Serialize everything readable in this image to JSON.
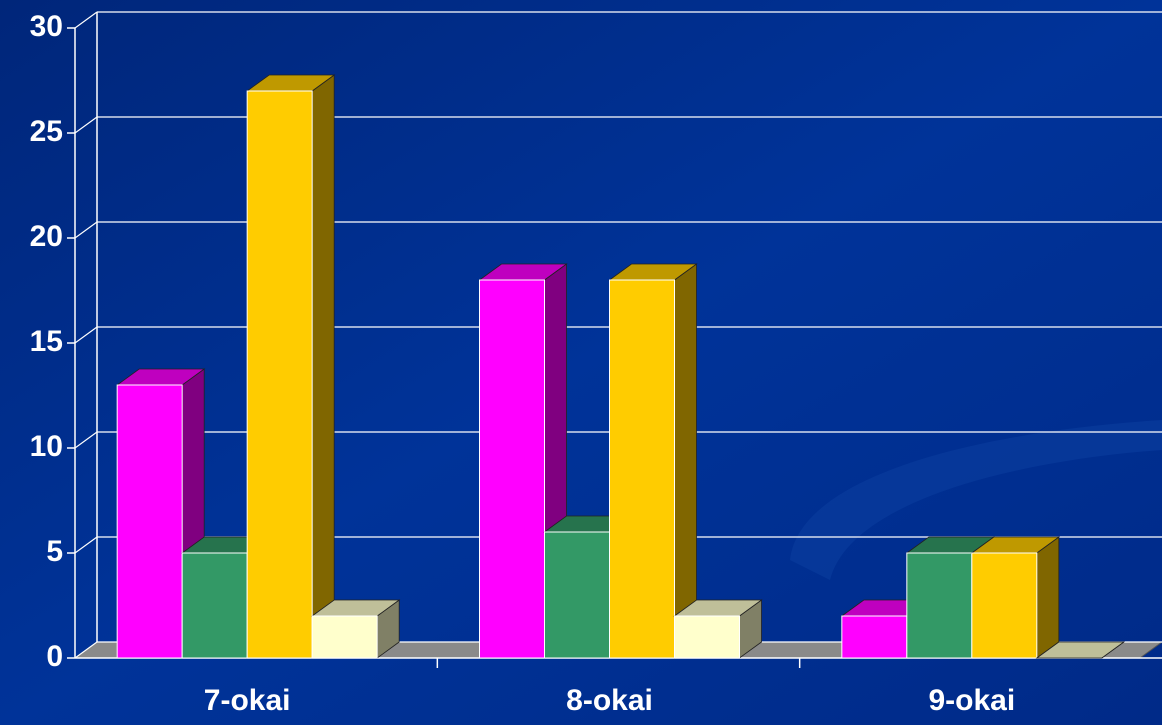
{
  "chart_data": {
    "type": "bar3d",
    "categories": [
      "7-okai",
      "8-okai",
      "9-okai"
    ],
    "series": [
      {
        "color": "#ff00ff",
        "values": [
          13,
          18,
          2
        ]
      },
      {
        "color": "#339966",
        "values": [
          5,
          6,
          5
        ]
      },
      {
        "color": "#ffcc00",
        "values": [
          27,
          18,
          5
        ]
      },
      {
        "color": "#ffffcc",
        "values": [
          2,
          2,
          0
        ]
      }
    ],
    "ylim": [
      0,
      30
    ],
    "yticks": [
      0,
      5,
      10,
      15,
      20,
      25,
      30
    ],
    "grid": true
  }
}
